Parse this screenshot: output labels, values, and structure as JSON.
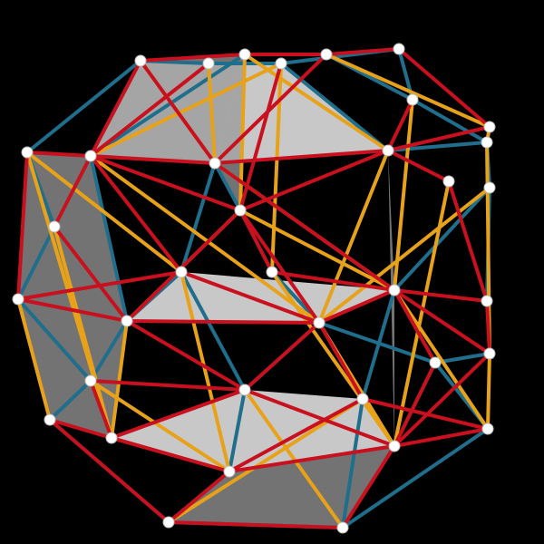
{
  "scene": {
    "background": "#000000",
    "colors": {
      "strut_red": "#c8101e",
      "strut_blue": "#1e6e8c",
      "strut_yellow": "#e8a21a",
      "panel": "#d9d9d9",
      "panel_shade": "#9a9a9a",
      "node": "#ffffff"
    }
  }
}
